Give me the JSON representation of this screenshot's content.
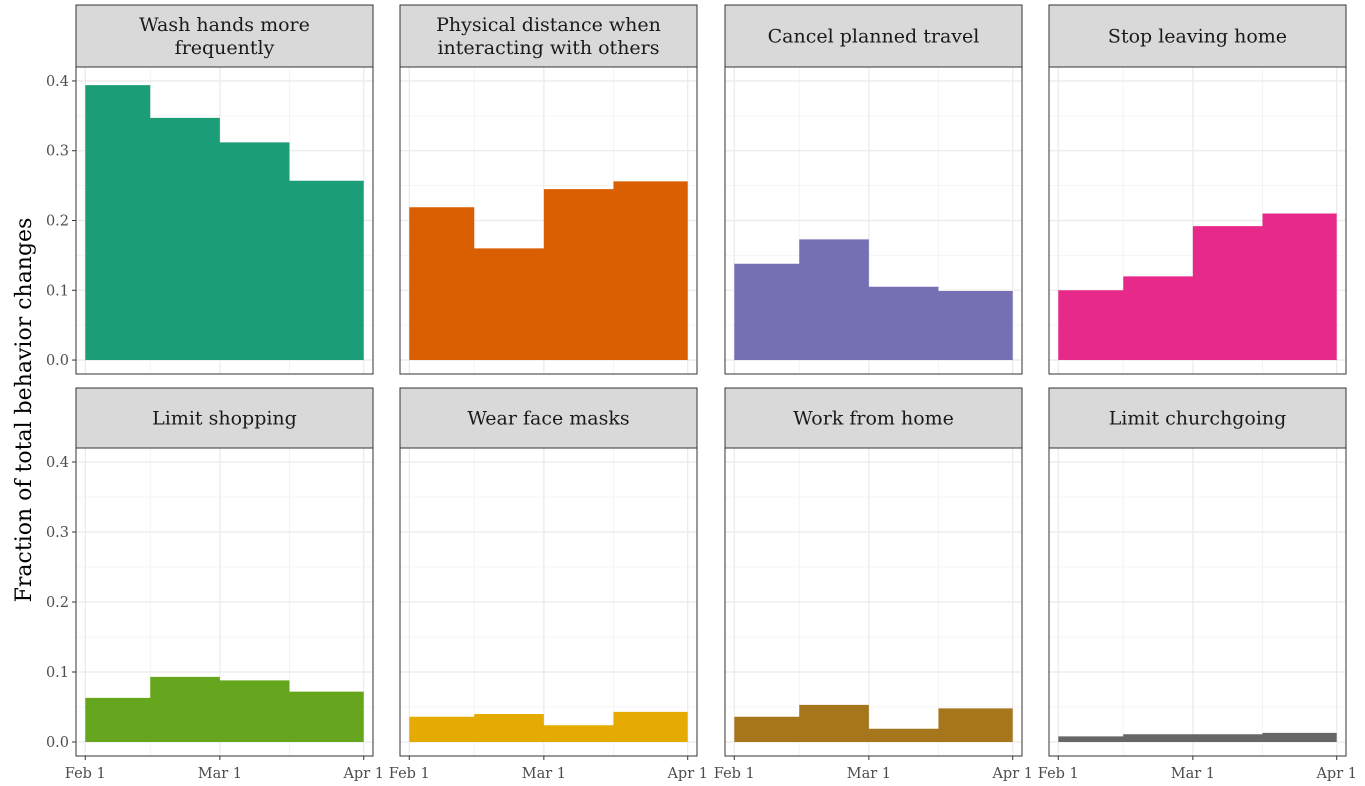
{
  "chart_data": {
    "type": "area",
    "layout": "facet-grid 2x4, shared axes",
    "ylabel": "Fraction of total behavior changes",
    "xlabel": "",
    "ylim": [
      0,
      0.4
    ],
    "y_ticks": [
      0.0,
      0.1,
      0.2,
      0.3,
      0.4
    ],
    "y_tick_labels": [
      "0.0",
      "0.1",
      "0.2",
      "0.3",
      "0.4"
    ],
    "x_tick_labels": [
      "Feb 1",
      "Mar 1",
      "Apr 1"
    ],
    "grid": true,
    "legend": "none",
    "bins": [
      {
        "start": "2020-02-01",
        "end": "2020-02-15"
      },
      {
        "start": "2020-02-15",
        "end": "2020-03-01"
      },
      {
        "start": "2020-03-01",
        "end": "2020-03-16"
      },
      {
        "start": "2020-03-16",
        "end": "2020-04-01"
      }
    ],
    "panels": [
      {
        "title": "Wash hands more frequently",
        "title_lines": [
          "Wash hands more",
          "frequently"
        ],
        "color": "#1B9E77",
        "values": [
          0.394,
          0.347,
          0.312,
          0.257
        ]
      },
      {
        "title": "Physical distance when interacting with others",
        "title_lines": [
          "Physical distance when",
          "interacting with others"
        ],
        "color": "#D95F02",
        "values": [
          0.219,
          0.16,
          0.245,
          0.256
        ]
      },
      {
        "title": "Cancel planned travel",
        "title_lines": [
          "Cancel planned travel"
        ],
        "color": "#7570B3",
        "values": [
          0.138,
          0.173,
          0.105,
          0.099
        ]
      },
      {
        "title": "Stop leaving home",
        "title_lines": [
          "Stop leaving home"
        ],
        "color": "#E7298A",
        "values": [
          0.1,
          0.12,
          0.192,
          0.21
        ]
      },
      {
        "title": "Limit shopping",
        "title_lines": [
          "Limit shopping"
        ],
        "color": "#66A61E",
        "values": [
          0.063,
          0.093,
          0.088,
          0.072
        ]
      },
      {
        "title": "Wear face masks",
        "title_lines": [
          "Wear face masks"
        ],
        "color": "#E6AB02",
        "values": [
          0.036,
          0.04,
          0.024,
          0.043
        ]
      },
      {
        "title": "Work from home",
        "title_lines": [
          "Work from home"
        ],
        "color": "#A6761D",
        "values": [
          0.036,
          0.053,
          0.019,
          0.048
        ]
      },
      {
        "title": "Limit churchgoing",
        "title_lines": [
          "Limit churchgoing"
        ],
        "color": "#666666",
        "values": [
          0.008,
          0.011,
          0.011,
          0.013
        ]
      }
    ]
  }
}
